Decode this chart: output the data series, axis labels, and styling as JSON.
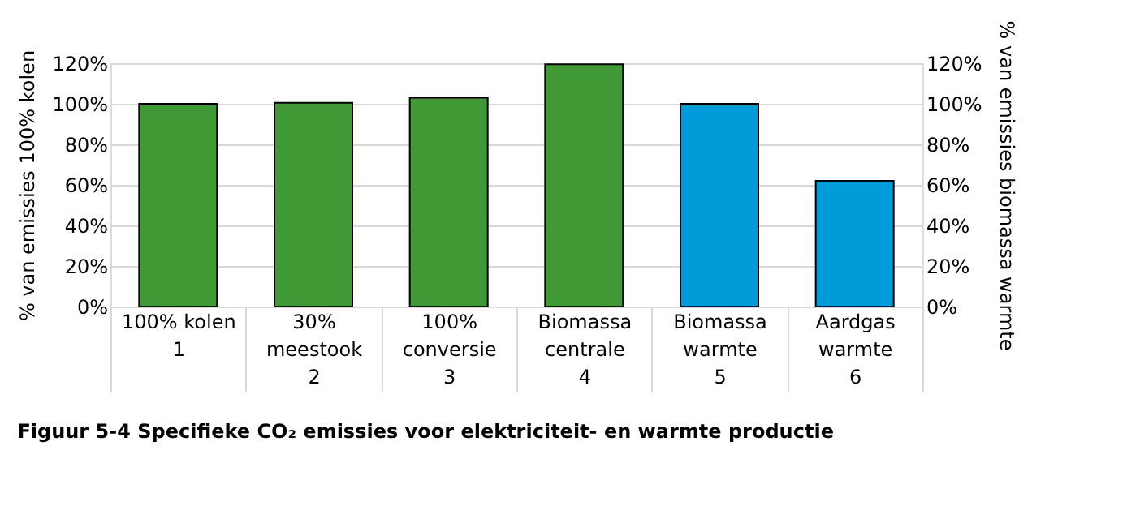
{
  "chart_data": {
    "type": "bar",
    "title": "Figuur 5-4      Specifieke CO₂ emissies voor elektriciteit- en warmte productie",
    "categories": [
      "100% kolen\n\n1",
      "30%\nmeestook\n\n2",
      "100%\nconversie\n\n3",
      "Biomassa\ncentrale\n\n4",
      "Biomassa\nwarmte\n\n5",
      "Aardgas\nwarmte\n\n6"
    ],
    "series": [
      {
        "color": "#3f9a35",
        "values": [
          100,
          100.5,
          103,
          119.5,
          null,
          null
        ]
      },
      {
        "color": "#009bd9",
        "axis": "y2",
        "values": [
          null,
          null,
          null,
          null,
          100,
          62
        ]
      }
    ],
    "ylabel": "% van emissies 100% kolen",
    "y2label": "% van emissies biomassa warmte",
    "ylim": [
      0,
      120
    ],
    "yticks": [
      {
        "value": 0,
        "label": "0%"
      },
      {
        "value": 20,
        "label": "20%"
      },
      {
        "value": 40,
        "label": "40%"
      },
      {
        "value": 60,
        "label": "60%"
      },
      {
        "value": 80,
        "label": "80%"
      },
      {
        "value": 100,
        "label": "100%"
      },
      {
        "value": 120,
        "label": "120%"
      }
    ],
    "y2lim": [
      0,
      120
    ],
    "y2ticks": [
      {
        "value": 0,
        "label": "0%"
      },
      {
        "value": 20,
        "label": "20%"
      },
      {
        "value": 40,
        "label": "40%"
      },
      {
        "value": 60,
        "label": "60%"
      },
      {
        "value": 80,
        "label": "80%"
      },
      {
        "value": 100,
        "label": "100%"
      },
      {
        "value": 120,
        "label": "120%"
      }
    ],
    "grid": "y"
  }
}
